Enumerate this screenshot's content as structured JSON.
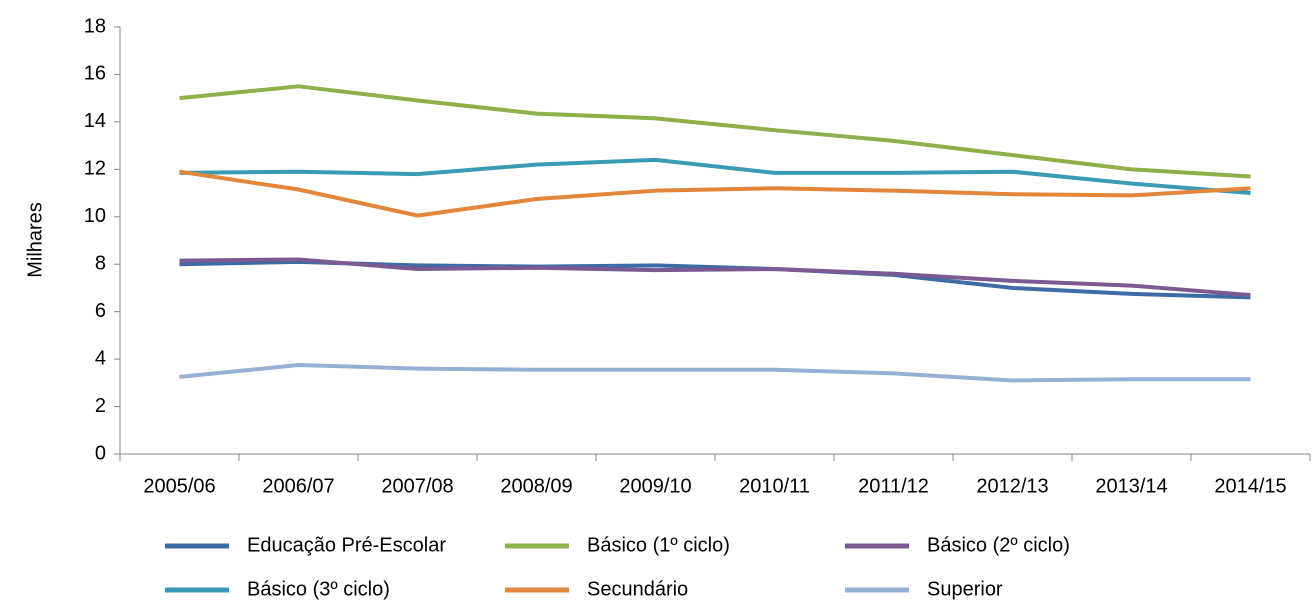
{
  "chart_data": {
    "type": "line",
    "ylabel": "Milhares",
    "categories": [
      "2005/06",
      "2006/07",
      "2007/08",
      "2008/09",
      "2009/10",
      "2010/11",
      "2011/12",
      "2012/13",
      "2013/14",
      "2014/15"
    ],
    "series": [
      {
        "name": "Educação Pré-Escolar",
        "color": "#3d6ba6",
        "values": [
          8.0,
          8.1,
          7.95,
          7.9,
          7.95,
          7.8,
          7.55,
          7.0,
          6.75,
          6.6
        ]
      },
      {
        "name": "Básico (1º ciclo)",
        "color": "#8db04a",
        "values": [
          15.0,
          15.5,
          14.9,
          14.35,
          14.15,
          13.65,
          13.2,
          12.6,
          12.0,
          11.7
        ]
      },
      {
        "name": "Básico (2º ciclo)",
        "color": "#7b5a93",
        "values": [
          8.15,
          8.2,
          7.8,
          7.85,
          7.75,
          7.8,
          7.6,
          7.3,
          7.1,
          6.7
        ]
      },
      {
        "name": "Básico (3º ciclo)",
        "color": "#3b9ab3",
        "values": [
          11.85,
          11.9,
          11.8,
          12.2,
          12.4,
          11.85,
          11.85,
          11.9,
          11.4,
          11.0
        ]
      },
      {
        "name": "Secundário",
        "color": "#e3853a",
        "values": [
          11.9,
          11.15,
          10.05,
          10.75,
          11.1,
          11.2,
          11.1,
          10.95,
          10.9,
          11.2
        ]
      },
      {
        "name": "Superior",
        "color": "#97afd4",
        "values": [
          3.25,
          3.75,
          3.6,
          3.55,
          3.55,
          3.55,
          3.4,
          3.1,
          3.15,
          3.15
        ]
      }
    ],
    "ylim": [
      0,
      18
    ],
    "yticks": [
      0,
      2,
      4,
      6,
      8,
      10,
      12,
      14,
      16,
      18
    ],
    "grid": false,
    "legend": "bottom"
  }
}
